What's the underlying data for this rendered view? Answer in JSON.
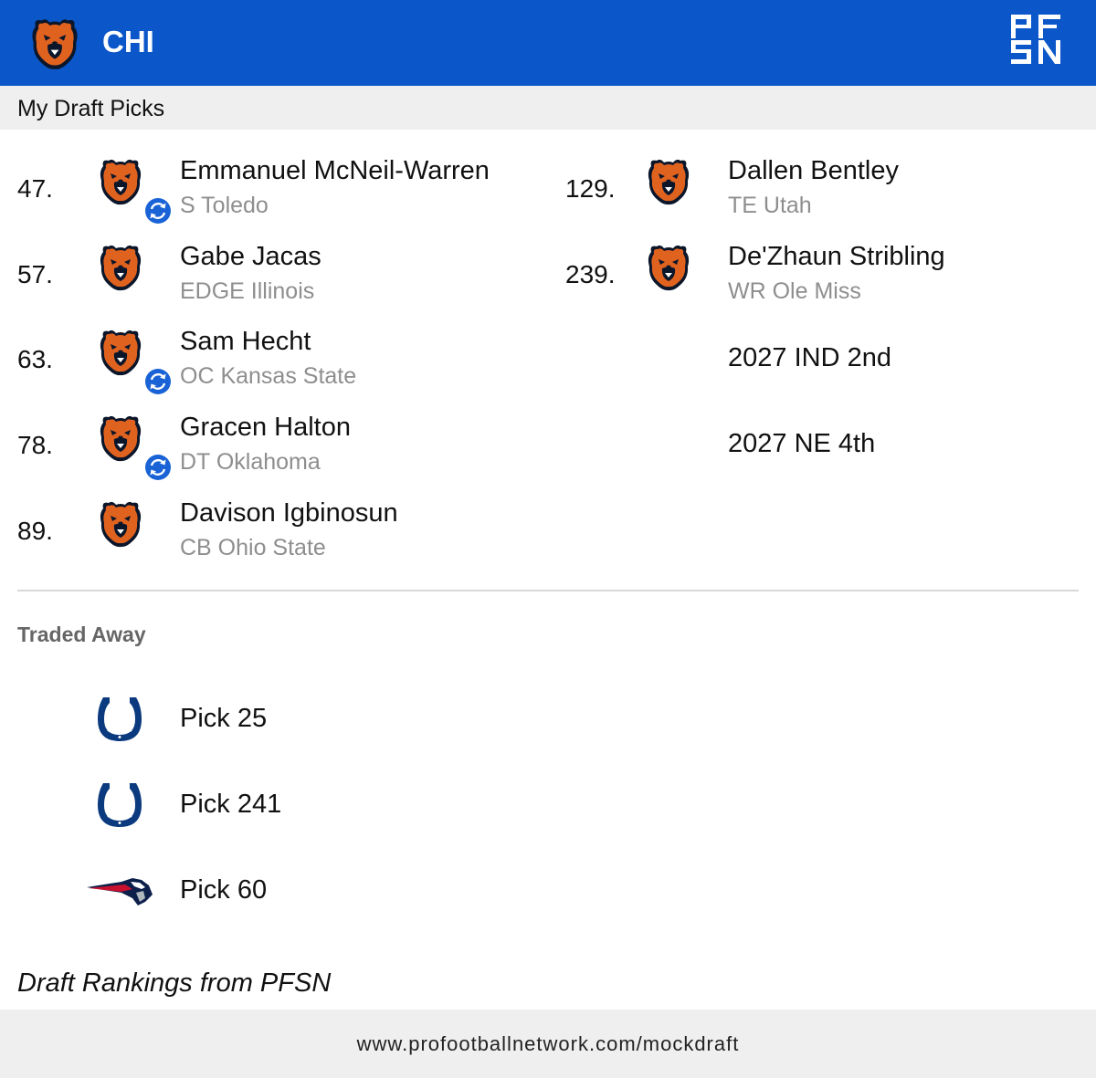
{
  "header": {
    "team_abbr": "CHI",
    "team_logo_icon": "bears-logo-icon",
    "brand_logo_icon": "pfsn-logo-icon",
    "bg_color": "#0b57c9"
  },
  "section_title": "My Draft Picks",
  "picks_left": [
    {
      "num": "47.",
      "name": "Emmanuel McNeil-Warren",
      "detail": "S Toledo",
      "traded": true
    },
    {
      "num": "57.",
      "name": "Gabe Jacas",
      "detail": "EDGE Illinois",
      "traded": false
    },
    {
      "num": "63.",
      "name": "Sam Hecht",
      "detail": "OC Kansas State",
      "traded": true
    },
    {
      "num": "78.",
      "name": "Gracen Halton",
      "detail": "DT Oklahoma",
      "traded": true
    },
    {
      "num": "89.",
      "name": "Davison Igbinosun",
      "detail": "CB Ohio State",
      "traded": false
    }
  ],
  "picks_right": [
    {
      "num": "129.",
      "name": "Dallen Bentley",
      "detail": "TE Utah"
    },
    {
      "num": "239.",
      "name": "De'Zhaun Stribling",
      "detail": "WR Ole Miss"
    }
  ],
  "future_picks": [
    "2027 IND 2nd",
    "2027 NE 4th"
  ],
  "traded_away": {
    "title": "Traded Away",
    "items": [
      {
        "label": "Pick 25",
        "logo": "colts-horseshoe-icon"
      },
      {
        "label": "Pick 241",
        "logo": "colts-horseshoe-icon"
      },
      {
        "label": "Pick 60",
        "logo": "patriots-logo-icon"
      }
    ]
  },
  "credit": "Draft Rankings from PFSN",
  "footer_url": "www.profootballnetwork.com/mockdraft"
}
